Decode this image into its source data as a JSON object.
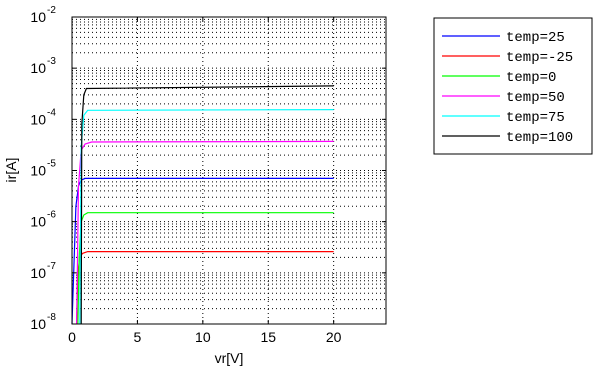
{
  "chart_data": {
    "type": "line",
    "xlabel": "vr[V]",
    "ylabel": "ir[A]",
    "xlim": [
      0,
      24
    ],
    "ylim": [
      1e-08,
      0.01
    ],
    "yscale": "log",
    "grid": true,
    "grid_style": "dotted",
    "legend_position": "outside-top-right",
    "x_ticks": [
      "0",
      "5",
      "10",
      "15",
      "20"
    ],
    "y_ticks": [
      {
        "base": "10",
        "exp": "-8"
      },
      {
        "base": "10",
        "exp": "-7"
      },
      {
        "base": "10",
        "exp": "-6"
      },
      {
        "base": "10",
        "exp": "-5"
      },
      {
        "base": "10",
        "exp": "-4"
      },
      {
        "base": "10",
        "exp": "-3"
      },
      {
        "base": "10",
        "exp": "-2"
      }
    ],
    "series": [
      {
        "name": "temp=25",
        "color": "#0000ff",
        "x": [
          0,
          0.3,
          0.5,
          0.7,
          1.0,
          20
        ],
        "y": [
          1e-08,
          2e-06,
          5e-06,
          6.5e-06,
          7e-06,
          7e-06
        ]
      },
      {
        "name": "temp=-25",
        "color": "#ff0000",
        "x": [
          0.35,
          0.45,
          0.6,
          0.8,
          1.2,
          20
        ],
        "y": [
          1e-08,
          1e-07,
          2e-07,
          2.4e-07,
          2.6e-07,
          2.6e-07
        ]
      },
      {
        "name": "temp=0",
        "color": "#00ff00",
        "x": [
          0.45,
          0.55,
          0.7,
          0.9,
          1.2,
          20
        ],
        "y": [
          1e-08,
          2e-07,
          1e-06,
          1.35e-06,
          1.5e-06,
          1.5e-06
        ]
      },
      {
        "name": "temp=50",
        "color": "#ff00ff",
        "x": [
          0.35,
          0.5,
          0.7,
          1.0,
          1.5,
          20
        ],
        "y": [
          1e-08,
          5e-06,
          2.5e-05,
          3.3e-05,
          3.6e-05,
          3.7e-05
        ]
      },
      {
        "name": "temp=75",
        "color": "#00ffff",
        "x": [
          0.6,
          0.7,
          0.9,
          1.2,
          20
        ],
        "y": [
          1e-08,
          3e-05,
          0.00012,
          0.00015,
          0.000155
        ]
      },
      {
        "name": "temp=100",
        "color": "#000000",
        "x": [
          0.7,
          0.75,
          0.9,
          1.1,
          20
        ],
        "y": [
          1e-08,
          8e-05,
          0.0003,
          0.0004,
          0.00045
        ]
      }
    ]
  }
}
